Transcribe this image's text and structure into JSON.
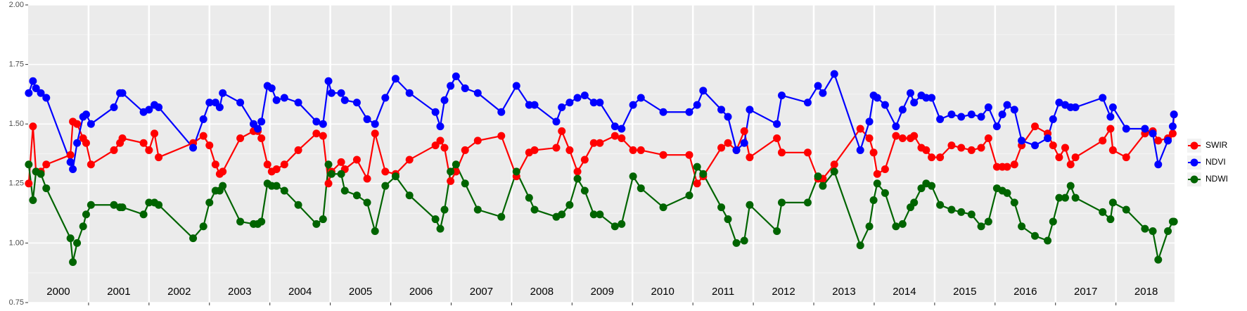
{
  "chart_data": {
    "type": "line",
    "x": [
      2000.01,
      2000.08,
      2000.13,
      2000.21,
      2000.3,
      2000.7,
      2000.74,
      2000.81,
      2000.91,
      2000.96,
      2001.04,
      2001.42,
      2001.52,
      2001.56,
      2001.91,
      2002.0,
      2002.09,
      2002.16,
      2002.73,
      2002.9,
      2003.0,
      2003.1,
      2003.17,
      2003.22,
      2003.51,
      2003.73,
      2003.8,
      2003.86,
      2003.96,
      2004.03,
      2004.11,
      2004.24,
      2004.47,
      2004.77,
      2004.88,
      2004.97,
      2005.02,
      2005.18,
      2005.24,
      2005.44,
      2005.61,
      2005.74,
      2005.91,
      2006.08,
      2006.31,
      2006.74,
      2006.82,
      2006.89,
      2006.99,
      2007.08,
      2007.23,
      2007.44,
      2007.83,
      2008.08,
      2008.29,
      2008.38,
      2008.74,
      2008.83,
      2008.96,
      2009.09,
      2009.21,
      2009.36,
      2009.46,
      2009.71,
      2009.82,
      2010.01,
      2010.14,
      2010.51,
      2010.94,
      2011.07,
      2011.17,
      2011.47,
      2011.58,
      2011.72,
      2011.85,
      2011.94,
      2012.39,
      2012.47,
      2012.9,
      2013.07,
      2013.15,
      2013.34,
      2013.77,
      2013.92,
      2013.99,
      2014.05,
      2014.18,
      2014.36,
      2014.47,
      2014.6,
      2014.66,
      2014.78,
      2014.86,
      2014.95,
      2015.09,
      2015.28,
      2015.44,
      2015.61,
      2015.77,
      2015.89,
      2016.03,
      2016.12,
      2016.2,
      2016.32,
      2016.44,
      2016.66,
      2016.87,
      2016.96,
      2017.06,
      2017.16,
      2017.25,
      2017.33,
      2017.78,
      2017.91,
      2017.95,
      2018.17,
      2018.48,
      2018.61,
      2018.7,
      2018.86,
      2018.94,
      2018.96
    ],
    "series": [
      {
        "name": "SWIR",
        "color": "#ff0000",
        "values": [
          1.25,
          1.49,
          1.3,
          1.3,
          1.33,
          1.37,
          1.51,
          1.5,
          1.44,
          1.42,
          1.33,
          1.39,
          1.42,
          1.44,
          1.42,
          1.39,
          1.46,
          1.36,
          1.42,
          1.45,
          1.41,
          1.33,
          1.29,
          1.3,
          1.44,
          1.47,
          1.47,
          1.44,
          1.33,
          1.3,
          1.31,
          1.33,
          1.39,
          1.46,
          1.45,
          1.25,
          1.3,
          1.34,
          1.31,
          1.35,
          1.27,
          1.46,
          1.3,
          1.29,
          1.35,
          1.41,
          1.43,
          1.4,
          1.26,
          1.3,
          1.39,
          1.43,
          1.45,
          1.28,
          1.38,
          1.39,
          1.4,
          1.47,
          1.39,
          1.3,
          1.35,
          1.42,
          1.42,
          1.45,
          1.44,
          1.39,
          1.39,
          1.37,
          1.37,
          1.25,
          1.28,
          1.4,
          1.42,
          1.39,
          1.47,
          1.36,
          1.44,
          1.38,
          1.38,
          1.27,
          1.27,
          1.33,
          1.48,
          1.44,
          1.38,
          1.29,
          1.31,
          1.45,
          1.44,
          1.44,
          1.45,
          1.4,
          1.39,
          1.36,
          1.36,
          1.41,
          1.4,
          1.39,
          1.4,
          1.44,
          1.32,
          1.32,
          1.32,
          1.33,
          1.41,
          1.49,
          1.46,
          1.41,
          1.36,
          1.4,
          1.33,
          1.36,
          1.43,
          1.48,
          1.39,
          1.36,
          1.46,
          1.47,
          1.43,
          1.44,
          1.46,
          1.54
        ]
      },
      {
        "name": "NDVI",
        "color": "#0000ff",
        "values": [
          1.63,
          1.68,
          1.65,
          1.63,
          1.61,
          1.34,
          1.31,
          1.42,
          1.53,
          1.54,
          1.5,
          1.57,
          1.63,
          1.63,
          1.55,
          1.56,
          1.58,
          1.57,
          1.4,
          1.52,
          1.59,
          1.59,
          1.57,
          1.63,
          1.59,
          1.5,
          1.48,
          1.51,
          1.66,
          1.65,
          1.6,
          1.61,
          1.59,
          1.51,
          1.5,
          1.68,
          1.63,
          1.63,
          1.6,
          1.59,
          1.52,
          1.5,
          1.61,
          1.69,
          1.63,
          1.55,
          1.49,
          1.6,
          1.66,
          1.7,
          1.65,
          1.63,
          1.55,
          1.66,
          1.58,
          1.58,
          1.51,
          1.57,
          1.59,
          1.61,
          1.62,
          1.59,
          1.59,
          1.49,
          1.48,
          1.58,
          1.61,
          1.55,
          1.55,
          1.58,
          1.64,
          1.56,
          1.53,
          1.39,
          1.42,
          1.56,
          1.5,
          1.62,
          1.59,
          1.66,
          1.63,
          1.71,
          1.39,
          1.51,
          1.62,
          1.61,
          1.58,
          1.49,
          1.56,
          1.63,
          1.59,
          1.62,
          1.61,
          1.61,
          1.52,
          1.54,
          1.53,
          1.54,
          1.53,
          1.57,
          1.49,
          1.54,
          1.58,
          1.56,
          1.43,
          1.41,
          1.44,
          1.52,
          1.59,
          1.58,
          1.57,
          1.57,
          1.61,
          1.53,
          1.57,
          1.48,
          1.48,
          1.46,
          1.33,
          1.43,
          1.49,
          1.54
        ]
      },
      {
        "name": "NDWI",
        "color": "#006400",
        "values": [
          1.33,
          1.18,
          1.3,
          1.29,
          1.23,
          1.02,
          0.92,
          1.0,
          1.07,
          1.12,
          1.16,
          1.16,
          1.15,
          1.15,
          1.12,
          1.17,
          1.17,
          1.16,
          1.02,
          1.07,
          1.17,
          1.22,
          1.22,
          1.24,
          1.09,
          1.08,
          1.08,
          1.09,
          1.25,
          1.24,
          1.24,
          1.22,
          1.16,
          1.08,
          1.1,
          1.33,
          1.29,
          1.29,
          1.22,
          1.2,
          1.17,
          1.05,
          1.24,
          1.28,
          1.2,
          1.1,
          1.06,
          1.14,
          1.3,
          1.33,
          1.25,
          1.14,
          1.11,
          1.3,
          1.19,
          1.14,
          1.11,
          1.12,
          1.16,
          1.27,
          1.22,
          1.12,
          1.12,
          1.07,
          1.08,
          1.28,
          1.23,
          1.15,
          1.2,
          1.32,
          1.29,
          1.15,
          1.1,
          1.0,
          1.01,
          1.16,
          1.05,
          1.17,
          1.17,
          1.28,
          1.24,
          1.3,
          0.99,
          1.07,
          1.18,
          1.25,
          1.21,
          1.07,
          1.08,
          1.15,
          1.17,
          1.23,
          1.25,
          1.24,
          1.16,
          1.14,
          1.13,
          1.12,
          1.07,
          1.09,
          1.23,
          1.22,
          1.21,
          1.17,
          1.07,
          1.03,
          1.01,
          1.09,
          1.19,
          1.19,
          1.24,
          1.19,
          1.13,
          1.1,
          1.17,
          1.14,
          1.06,
          1.05,
          0.93,
          1.05,
          1.09,
          1.09
        ]
      }
    ],
    "xlim": [
      2000,
      2018.97
    ],
    "xticks": [
      {
        "value": 2000.5,
        "label": "2000"
      },
      {
        "value": 2001.5,
        "label": "2001"
      },
      {
        "value": 2002.5,
        "label": "2002"
      },
      {
        "value": 2003.5,
        "label": "2003"
      },
      {
        "value": 2004.5,
        "label": "2004"
      },
      {
        "value": 2005.5,
        "label": "2005"
      },
      {
        "value": 2006.5,
        "label": "2006"
      },
      {
        "value": 2007.5,
        "label": "2007"
      },
      {
        "value": 2008.5,
        "label": "2008"
      },
      {
        "value": 2009.5,
        "label": "2009"
      },
      {
        "value": 2010.5,
        "label": "2010"
      },
      {
        "value": 2011.5,
        "label": "2011"
      },
      {
        "value": 2012.5,
        "label": "2012"
      },
      {
        "value": 2013.5,
        "label": "2013"
      },
      {
        "value": 2014.5,
        "label": "2014"
      },
      {
        "value": 2015.5,
        "label": "2015"
      },
      {
        "value": 2016.5,
        "label": "2016"
      },
      {
        "value": 2017.5,
        "label": "2017"
      },
      {
        "value": 2018.5,
        "label": "2018"
      }
    ],
    "x_boundaries": [
      2001,
      2002,
      2003,
      2004,
      2005,
      2006,
      2007,
      2008,
      2009,
      2010,
      2011,
      2012,
      2013,
      2014,
      2015,
      2016,
      2017,
      2018
    ],
    "ylim": [
      0.75,
      2.0
    ],
    "yticks": [
      {
        "value": 0.75,
        "label": "0.75"
      },
      {
        "value": 1.0,
        "label": "1.00"
      },
      {
        "value": 1.25,
        "label": "1.25"
      },
      {
        "value": 1.5,
        "label": "1.50"
      },
      {
        "value": 1.75,
        "label": "1.75"
      },
      {
        "value": 2.0,
        "label": "2.00"
      }
    ],
    "grid": true,
    "legend": "right"
  }
}
